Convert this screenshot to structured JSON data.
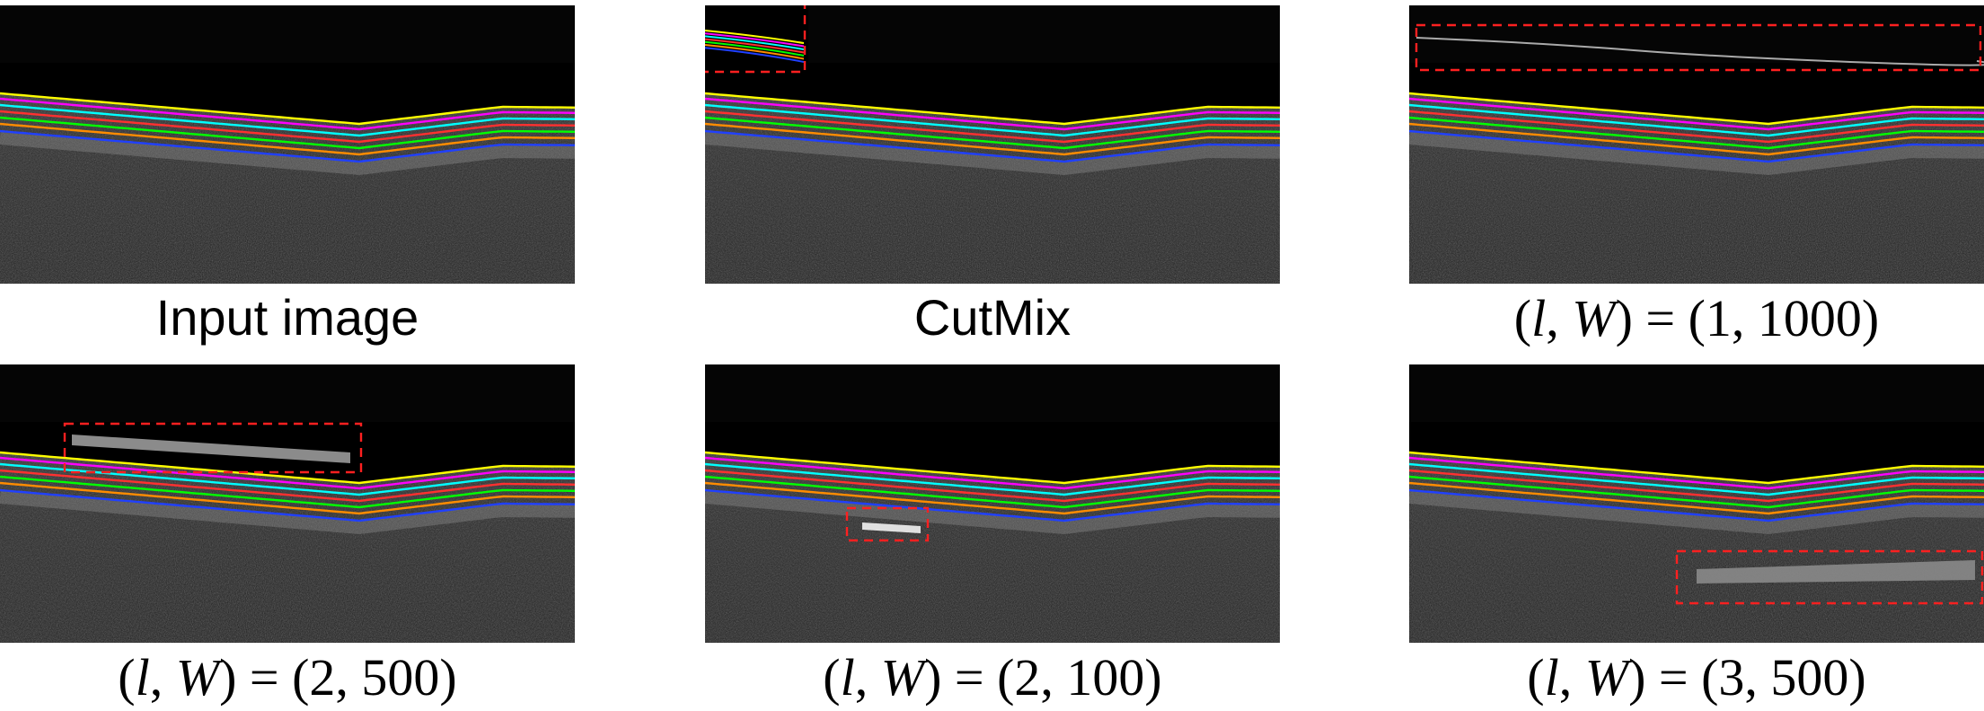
{
  "layer_colors": [
    "#ffff00",
    "#ff00ff",
    "#00ffff",
    "#ff3030",
    "#00ff00",
    "#ff8c00",
    "#2040ff"
  ],
  "highlight_color": "#ff2020",
  "panels": [
    {
      "caption": "Input image",
      "style": "sans"
    },
    {
      "caption": "CutMix",
      "style": "sans"
    },
    {
      "caption_parts": [
        "(",
        "l",
        ", ",
        "W",
        ") = (1, 1000)"
      ],
      "style": "serif"
    },
    {
      "caption_parts": [
        "(",
        "l",
        ", ",
        "W",
        ") = (2, 500)"
      ],
      "style": "serif"
    },
    {
      "caption_parts": [
        "(",
        "l",
        ", ",
        "W",
        ") = (2, 100)"
      ],
      "style": "serif"
    },
    {
      "caption_parts": [
        "(",
        "l",
        ", ",
        "W",
        ") = (3, 500)"
      ],
      "style": "serif"
    }
  ]
}
